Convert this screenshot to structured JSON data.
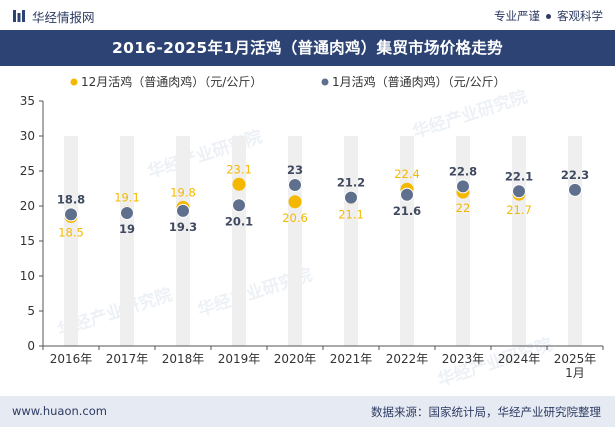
{
  "header": {
    "brand": "华经情报网",
    "tagline_left": "专业严谨",
    "tagline_right": "客观科学"
  },
  "title": "2016-2025年1月活鸡（普通肉鸡）集贸市场价格走势",
  "footer": {
    "website": "www.huaon.com",
    "source": "数据来源：国家统计局，华经产业研究院整理"
  },
  "watermark": "华经产业研究院",
  "colors": {
    "december_series": "#f5b800",
    "january_series": "#5f6f8e",
    "title_bg": "#2d4374",
    "column_bg": "#efefef"
  },
  "chart_data": {
    "type": "scatter",
    "categories": [
      "2016年",
      "2017年",
      "2018年",
      "2019年",
      "2020年",
      "2021年",
      "2022年",
      "2023年",
      "2024年",
      "2025年1月"
    ],
    "series": [
      {
        "name": "12月活鸡（普通肉鸡）（元/公斤）",
        "values": [
          18.5,
          19.1,
          19.8,
          23.1,
          20.6,
          21.1,
          22.4,
          22.0,
          21.7,
          null
        ]
      },
      {
        "name": "1月活鸡（普通肉鸡）（元/公斤）",
        "values": [
          18.8,
          19.0,
          19.3,
          20.1,
          23.0,
          21.2,
          21.6,
          22.8,
          22.1,
          22.3
        ]
      }
    ],
    "labels": {
      "december": [
        "18.5",
        "19.1",
        "19.8",
        "23.1",
        "20.6",
        "21.1",
        "22.4",
        "22",
        "21.7",
        ""
      ],
      "january": [
        "18.8",
        "19",
        "19.3",
        "20.1",
        "23",
        "21.2",
        "21.6",
        "22.8",
        "22.1",
        "22.3"
      ]
    },
    "yticks": [
      "0",
      "5",
      "10",
      "15",
      "20",
      "25",
      "30",
      "35"
    ],
    "ylim": [
      0,
      35
    ],
    "legend_position": "top-center",
    "grid": false
  }
}
